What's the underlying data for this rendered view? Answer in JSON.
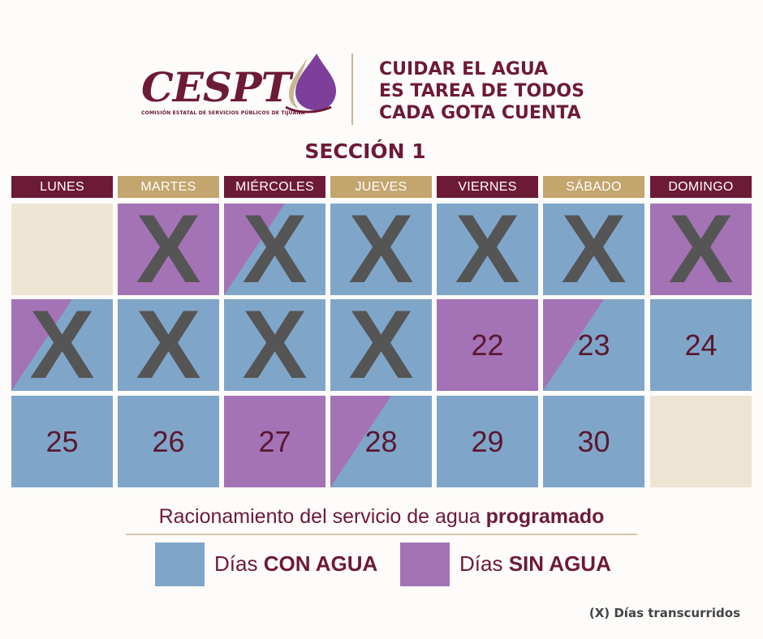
{
  "header": {
    "logo_text": "CESPT",
    "logo_subtitle": "COMISIÓN ESTATAL DE SERVICIOS PÚBLICOS DE TIJUANA",
    "tagline": [
      "CUIDAR EL AGUA",
      "ES TAREA DE TODOS",
      "CADA GOTA CUENTA"
    ]
  },
  "section_title": "SECCIÓN 1",
  "weekdays": [
    {
      "label": "LUNES",
      "color": "#6d1a36"
    },
    {
      "label": "MARTES",
      "color": "#c3a56e"
    },
    {
      "label": "MIÉRCOLES",
      "color": "#6d1a36"
    },
    {
      "label": "JUEVES",
      "color": "#c3a56e"
    },
    {
      "label": "VIERNES",
      "color": "#6d1a36"
    },
    {
      "label": "SÁBADO",
      "color": "#c3a56e"
    },
    {
      "label": "DOMINGO",
      "color": "#6d1a36"
    }
  ],
  "colors": {
    "con_agua": "#7fa6c9",
    "sin_agua": "#a473b5",
    "empty": "#ede4d4",
    "maroon": "#6d1a36",
    "tan": "#c3a56e"
  },
  "weeks": [
    [
      {
        "day": "",
        "status": "empty",
        "passed": false
      },
      {
        "day": "",
        "status": "sin",
        "passed": true
      },
      {
        "day": "",
        "status": "split-sin-con",
        "passed": true
      },
      {
        "day": "",
        "status": "con",
        "passed": true
      },
      {
        "day": "",
        "status": "con",
        "passed": true
      },
      {
        "day": "",
        "status": "con",
        "passed": true
      },
      {
        "day": "",
        "status": "sin",
        "passed": true
      }
    ],
    [
      {
        "day": "",
        "status": "split-sin-con",
        "passed": true
      },
      {
        "day": "",
        "status": "con",
        "passed": true
      },
      {
        "day": "",
        "status": "con",
        "passed": true
      },
      {
        "day": "",
        "status": "con",
        "passed": true
      },
      {
        "day": "22",
        "status": "sin",
        "passed": false
      },
      {
        "day": "23",
        "status": "split-sin-con",
        "passed": false
      },
      {
        "day": "24",
        "status": "con",
        "passed": false
      }
    ],
    [
      {
        "day": "25",
        "status": "con",
        "passed": false
      },
      {
        "day": "26",
        "status": "con",
        "passed": false
      },
      {
        "day": "27",
        "status": "sin",
        "passed": false
      },
      {
        "day": "28",
        "status": "split-sin-con",
        "passed": false
      },
      {
        "day": "29",
        "status": "con",
        "passed": false
      },
      {
        "day": "30",
        "status": "con",
        "passed": false
      },
      {
        "day": "",
        "status": "empty",
        "passed": false
      }
    ]
  ],
  "x_mark": "X",
  "legend": {
    "title_normal": "Racionamiento del servicio de agua ",
    "title_bold": "programado",
    "con_prefix": "Días ",
    "con_bold": "CON AGUA",
    "sin_prefix": "Días ",
    "sin_bold": "SIN AGUA"
  },
  "footnote": "(X) Días transcurridos"
}
